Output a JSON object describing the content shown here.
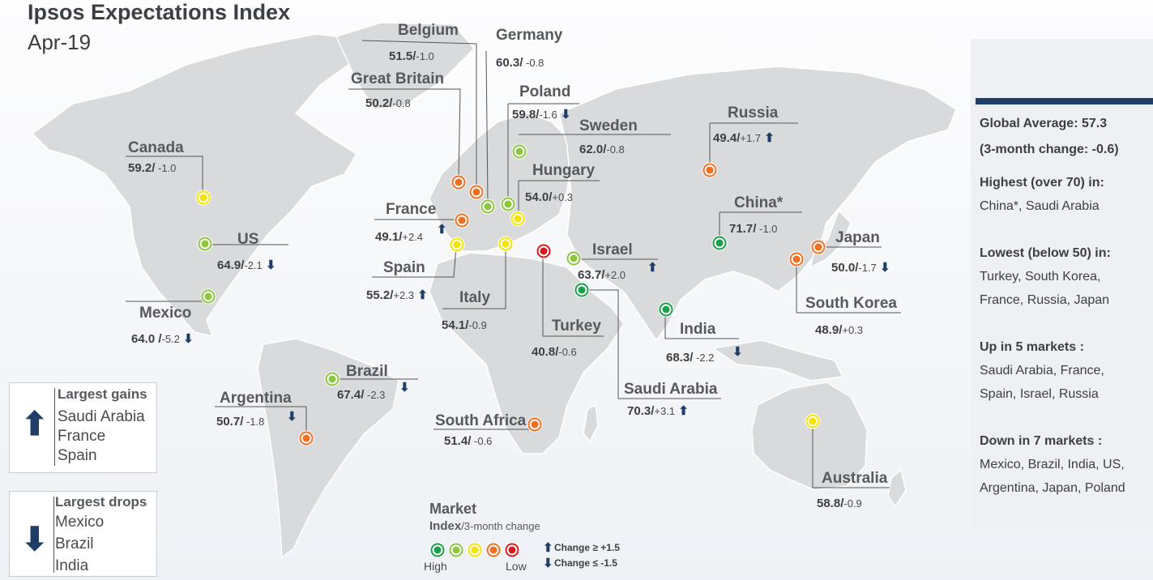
{
  "title": "Ipsos Expectations Index",
  "subtitle": "Apr-19",
  "colors": {
    "high": "#1aa04a",
    "high_mid": "#8cc63f",
    "mid": "#f5e400",
    "low_mid": "#f26f21",
    "low": "#d71920",
    "navy": "#1f3d66"
  },
  "countries": [
    {
      "name": "Belgium",
      "value": "51.5/",
      "change": "-1.0",
      "level": "low_mid"
    },
    {
      "name": "Germany",
      "value": "60.3/",
      "change": " -0.8",
      "level": "high_mid"
    },
    {
      "name": "Great Britain",
      "value": "50.2/",
      "change": "-0.8",
      "level": "low_mid"
    },
    {
      "name": "Poland",
      "value": "59.8/",
      "change": "-1.6",
      "level": "high_mid"
    },
    {
      "name": "Sweden",
      "value": "62.0/",
      "change": "-0.8",
      "level": "high_mid"
    },
    {
      "name": "Russia",
      "value": "49.4/",
      "change": "+1.7",
      "level": "low_mid"
    },
    {
      "name": "Canada",
      "value": "59.2/",
      "change": " -1.0",
      "level": "mid"
    },
    {
      "name": "Hungary",
      "value": "54.0/",
      "change": "+0.3",
      "level": "mid"
    },
    {
      "name": "France",
      "value": "49.1/",
      "change": "+2.4",
      "level": "low_mid"
    },
    {
      "name": "China*",
      "value": "71.7/",
      "change": " -1.0",
      "level": "high"
    },
    {
      "name": "Japan",
      "value": "50.0/",
      "change": "-1.7",
      "level": "low_mid"
    },
    {
      "name": "US",
      "value": "64.9/",
      "change": "-2.1",
      "level": "high_mid"
    },
    {
      "name": "Israel",
      "value": "63.7/",
      "change": "+2.0",
      "level": "high_mid"
    },
    {
      "name": "Spain",
      "value": "55.2/",
      "change": "+2.3",
      "level": "mid"
    },
    {
      "name": "South Korea",
      "value": "48.9/",
      "change": "+0.3",
      "level": "low_mid"
    },
    {
      "name": "Italy",
      "value": "54.1/",
      "change": "-0.9",
      "level": "mid"
    },
    {
      "name": "Mexico",
      "value": "64.0 /",
      "change": "-5.2",
      "level": "high_mid"
    },
    {
      "name": "Turkey",
      "value": "40.8/",
      "change": "-0.6",
      "level": "low"
    },
    {
      "name": "India",
      "value": "68.3/",
      "change": " -2.2",
      "level": "high"
    },
    {
      "name": "Brazil",
      "value": "67.4/",
      "change": " -2.3",
      "level": "high_mid"
    },
    {
      "name": "Saudi Arabia",
      "value": "70.3/",
      "change": "+3.1",
      "level": "high"
    },
    {
      "name": "Argentina",
      "value": "50.7/",
      "change": " -1.8",
      "level": "low_mid"
    },
    {
      "name": "South Africa",
      "value": "51.4/",
      "change": " -0.6",
      "level": "low_mid"
    },
    {
      "name": "Australia",
      "value": "58.8/",
      "change": "-0.9",
      "level": "mid"
    }
  ],
  "panel": {
    "global_avg": "Global Average: 57.3",
    "three_month": "(3-month change: -0.6)",
    "highest_h": "Highest (over 70) in:",
    "highest": "China*, Saudi Arabia",
    "lowest_h": "Lowest (below 50) in:",
    "lowest_1": "Turkey, South Korea,",
    "lowest_2": "France, Russia, Japan",
    "up_h": "Up in 5 markets :",
    "up_1": "Saudi Arabia, France,",
    "up_2": "Spain, Israel, Russia",
    "down_h": "Down in 7 markets :",
    "down_1": "Mexico, Brazil, India, US,",
    "down_2": "Argentina, Japan, Poland"
  },
  "gains": {
    "heading": "Largest gains",
    "items": [
      "Saudi Arabia",
      "France",
      "Spain"
    ]
  },
  "drops": {
    "heading": "Largest drops",
    "items": [
      "Mexico",
      "Brazil",
      "India"
    ]
  },
  "legend": {
    "title": "Market",
    "sub_bold": "Index",
    "sub": "/3-month change",
    "high": "High",
    "low": "Low",
    "up": "Change ≥ +1.5",
    "down": "Change ≤ -1.5"
  }
}
